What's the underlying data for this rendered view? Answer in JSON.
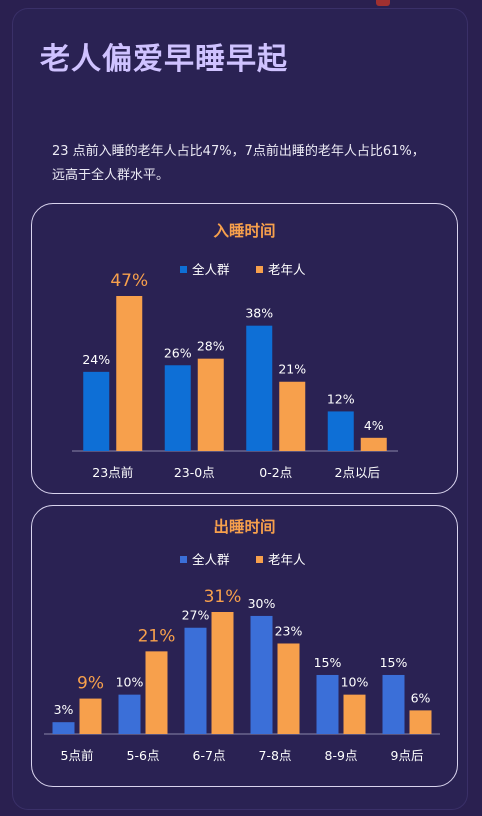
{
  "page": {
    "title": "老人偏爱早睡早起",
    "summary_line1": "23 点前入睡的老年人占比47%，7点前出睡的老年人占比61%，",
    "summary_line2": "远高于全人群水平。"
  },
  "colors": {
    "overall": "#0e6fd6",
    "overall_wake": "#3b6fd8",
    "elderly": "#f7a04c",
    "background": "#2a2253",
    "title": "#cfc2ff"
  },
  "chart_data": [
    {
      "type": "bar",
      "title": "入睡时间",
      "categories": [
        "23点前",
        "23-0点",
        "0-2点",
        "2点以后"
      ],
      "series": [
        {
          "name": "全人群",
          "values": [
            24,
            26,
            38,
            12
          ],
          "labels": [
            "24%",
            "26%",
            "38%",
            "12%"
          ]
        },
        {
          "name": "老年人",
          "values": [
            47,
            28,
            21,
            4
          ],
          "labels": [
            "47%",
            "28%",
            "21%",
            "4%"
          ]
        }
      ],
      "ylim": [
        0,
        50
      ],
      "grid": false,
      "legend": "top-center",
      "highlight": {
        "series": 1,
        "index": 0
      }
    },
    {
      "type": "bar",
      "title": "出睡时间",
      "categories": [
        "5点前",
        "5-6点",
        "6-7点",
        "7-8点",
        "8-9点",
        "9点后"
      ],
      "series": [
        {
          "name": "全人群",
          "values": [
            3,
            10,
            27,
            30,
            15,
            15
          ],
          "labels": [
            "3%",
            "10%",
            "27%",
            "30%",
            "15%",
            "15%"
          ]
        },
        {
          "name": "老年人",
          "values": [
            9,
            21,
            31,
            23,
            10,
            6
          ],
          "labels": [
            "9%",
            "21%",
            "31%",
            "23%",
            "10%",
            "6%"
          ]
        }
      ],
      "ylim": [
        0,
        35
      ],
      "grid": false,
      "legend": "top-center",
      "highlight": {
        "series": 1,
        "indices": [
          0,
          1,
          2
        ]
      }
    }
  ]
}
